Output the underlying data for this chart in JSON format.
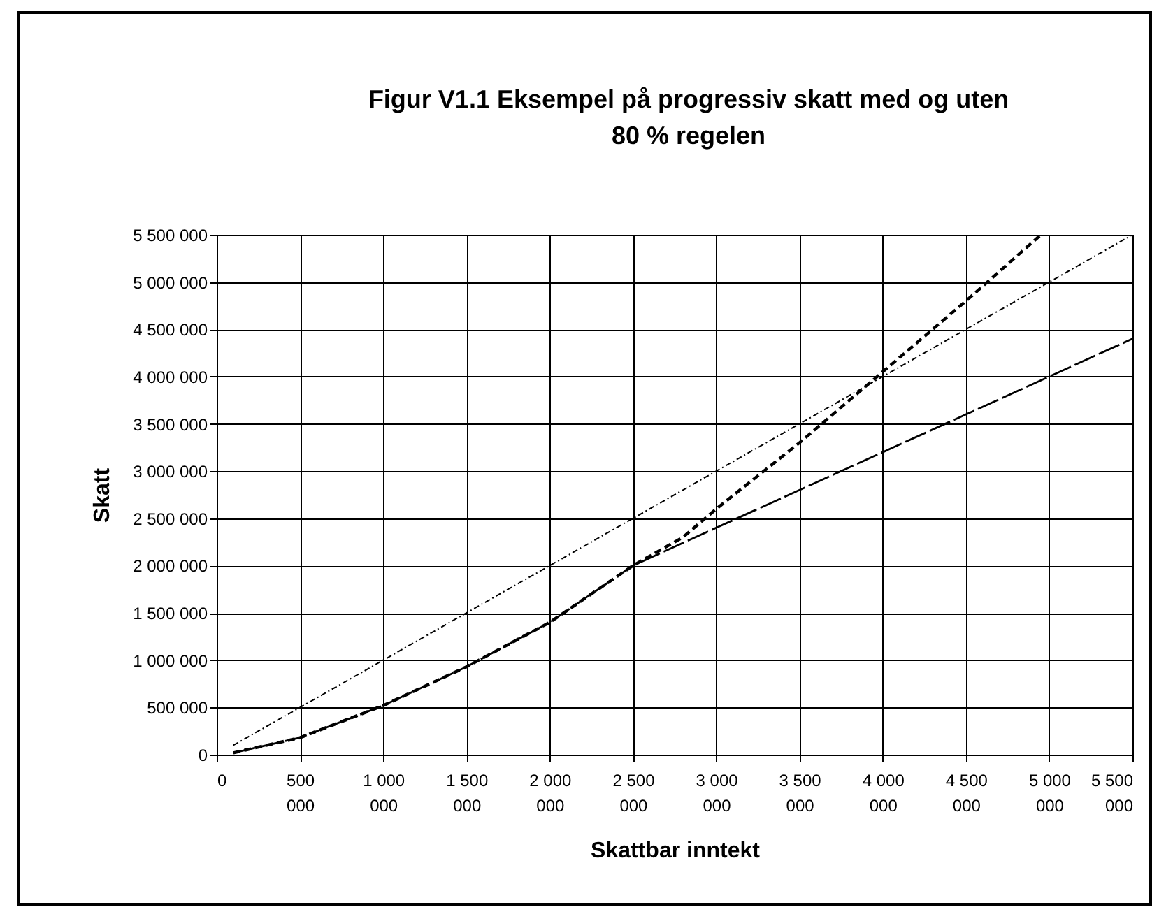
{
  "chart_data": {
    "type": "line",
    "title": [
      "Figur V1.1 Eksempel på progressiv skatt med og uten",
      "80 % regelen"
    ],
    "xlabel": "Skattbar inntekt",
    "ylabel": "Skatt",
    "xlim": [
      0,
      5500000
    ],
    "ylim": [
      0,
      5500000
    ],
    "xticks": [
      0,
      {
        "value": 500000,
        "label": "500 000"
      },
      {
        "value": 1000000,
        "label": "1 000 000"
      },
      {
        "value": 1500000,
        "label": "1 500 000"
      },
      {
        "value": 2000000,
        "label": "2 000 000"
      },
      {
        "value": 2500000,
        "label": "2 500 000"
      },
      {
        "value": 3000000,
        "label": "3 000 000"
      },
      {
        "value": 3500000,
        "label": "3 500 000"
      },
      {
        "value": 4000000,
        "label": "4 000 000"
      },
      {
        "value": 4500000,
        "label": "4 500 000"
      },
      {
        "value": 5000000,
        "label": "5 000 000"
      },
      {
        "value": 5500000,
        "label": "5 500 000"
      }
    ],
    "yticks": [
      0,
      {
        "value": 500000,
        "label": "500 000"
      },
      {
        "value": 1000000,
        "label": "1 000 000"
      },
      {
        "value": 1500000,
        "label": "1 500 000"
      },
      {
        "value": 2000000,
        "label": "2 000 000"
      },
      {
        "value": 2500000,
        "label": "2 500 000"
      },
      {
        "value": 3000000,
        "label": "3 000 000"
      },
      {
        "value": 3500000,
        "label": "3 500 000"
      },
      {
        "value": 4000000,
        "label": "4 000 000"
      },
      {
        "value": 4500000,
        "label": "4 500 000"
      },
      {
        "value": 5000000,
        "label": "5 000 000"
      },
      {
        "value": 5500000,
        "label": "5 500 000"
      }
    ],
    "grid": true,
    "legend": false,
    "series": [
      {
        "color": "#000000",
        "line_style": "dotted",
        "x": [
          100000,
          500000,
          1000000,
          1500000,
          2000000,
          2500000,
          3000000,
          3500000,
          4000000,
          4500000,
          5000000,
          5500000
        ],
        "values": [
          100000,
          500000,
          1000000,
          1500000,
          2000000,
          2500000,
          3000000,
          3500000,
          4000000,
          4500000,
          5000000,
          5500000
        ]
      },
      {
        "color": "#000000",
        "line_style": "dashed",
        "x": [
          100000,
          500000,
          1000000,
          1500000,
          2000000,
          2500000,
          2800000,
          3000000,
          3500000,
          4000000,
          4500000,
          4950000
        ],
        "values": [
          20000,
          180000,
          520000,
          930000,
          1400000,
          2000000,
          2300000,
          2600000,
          3300000,
          4050000,
          4800000,
          5500000
        ]
      },
      {
        "color": "#000000",
        "line_style": "dashed",
        "x": [
          100000,
          500000,
          1000000,
          1500000,
          2000000,
          2500000,
          3000000,
          3500000,
          4000000,
          4500000,
          5000000,
          5500000
        ],
        "values": [
          20000,
          180000,
          520000,
          930000,
          1400000,
          2000000,
          2400000,
          2800000,
          3200000,
          3600000,
          4000000,
          4400000
        ]
      }
    ]
  }
}
